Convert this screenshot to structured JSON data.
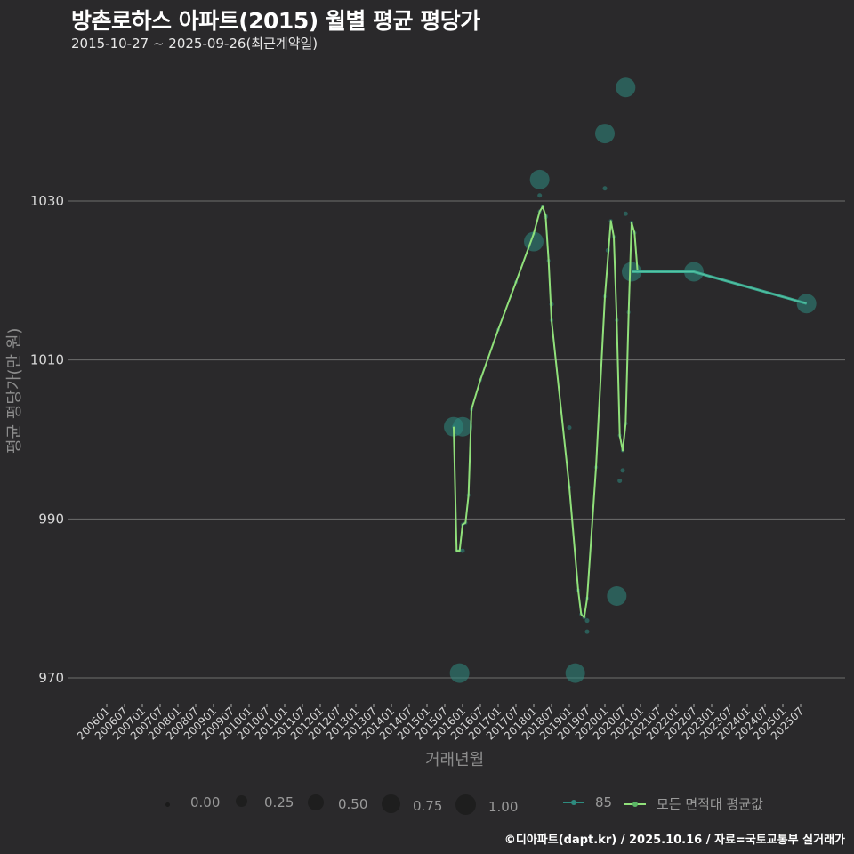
{
  "header": {
    "title": "방촌로하스 아파트(2015) 월별 평균 평당가",
    "subtitle": "2015-10-27 ~ 2025-09-26(최근계약일)"
  },
  "axes": {
    "ylabel": "평균 평당가(만 원)",
    "xlabel": "거래년월"
  },
  "footer": "©디아파트(dapt.kr) / 2025.10.16 / 자료=국토교통부 실거래가",
  "legend": {
    "size_labels": [
      "0.00",
      "0.25",
      "0.50",
      "0.75",
      "1.00"
    ],
    "series_labels": [
      "85",
      "모든 면적대 평균값"
    ]
  },
  "colors": {
    "background": "#2a292b",
    "grid": "#6e6e6e",
    "series_85": "#2e8b7f",
    "series_avg": "#90e07a"
  },
  "chart_data": {
    "type": "line",
    "title": "방촌로하스 아파트(2015) 월별 평균 평당가",
    "subtitle": "2015-10-27 ~ 2025-09-26(최근계약일)",
    "xlabel": "거래년월",
    "ylabel": "평균 평당가(만 원)",
    "ylim": [
      966,
      1048
    ],
    "yticks": [
      970,
      990,
      1010,
      1030
    ],
    "xticks": [
      "200601",
      "200607",
      "200701",
      "200707",
      "200801",
      "200807",
      "200901",
      "200907",
      "201001",
      "201007",
      "201101",
      "201107",
      "201201",
      "201207",
      "201301",
      "201307",
      "201401",
      "201407",
      "201501",
      "201507",
      "201601",
      "201607",
      "201701",
      "201707",
      "201801",
      "201807",
      "201901",
      "201907",
      "202001",
      "202007",
      "202101",
      "202107",
      "202201",
      "202207",
      "202301",
      "202307",
      "202401",
      "202407",
      "202501",
      "202507"
    ],
    "grid": "horizontal",
    "legend_position": "bottom",
    "series": [
      {
        "name": "85",
        "type": "scatter+line",
        "points": [
          {
            "x": "201510",
            "y": 1001.6,
            "size": 0.6
          },
          {
            "x": "201512",
            "y": 970.6,
            "size": 0.6
          },
          {
            "x": "201601",
            "y": 1001.6,
            "size": 0.6
          },
          {
            "x": "201801",
            "y": 1024.9,
            "size": 0.6
          },
          {
            "x": "201803",
            "y": 1032.7,
            "size": 0.6
          },
          {
            "x": "201903",
            "y": 970.6,
            "size": 0.6
          },
          {
            "x": "202001",
            "y": 1038.5,
            "size": 0.6
          },
          {
            "x": "202005",
            "y": 980.3,
            "size": 0.6
          },
          {
            "x": "202008",
            "y": 1044.3,
            "size": 0.6
          },
          {
            "x": "202010",
            "y": 1021.1,
            "size": 0.6
          },
          {
            "x": "202207",
            "y": 1021.1,
            "size": 0.6
          },
          {
            "x": "202509",
            "y": 1017.1,
            "size": 0.6
          }
        ],
        "line": [
          {
            "x": "202010",
            "y": 1021.1
          },
          {
            "x": "202207",
            "y": 1021.1
          },
          {
            "x": "202509",
            "y": 1017.1
          }
        ]
      },
      {
        "name": "모든 면적대 평균값",
        "type": "line",
        "points": [
          {
            "x": "201510",
            "y": 1001.6
          },
          {
            "x": "201511",
            "y": 986.0
          },
          {
            "x": "201512",
            "y": 986.0
          },
          {
            "x": "201601",
            "y": 989.3
          },
          {
            "x": "201602",
            "y": 989.5
          },
          {
            "x": "201603",
            "y": 993.0
          },
          {
            "x": "201604",
            "y": 1003.8
          },
          {
            "x": "201607",
            "y": 1007.5
          },
          {
            "x": "201701",
            "y": 1013.8
          },
          {
            "x": "201707",
            "y": 1019.8
          },
          {
            "x": "201801",
            "y": 1025.9
          },
          {
            "x": "201803",
            "y": 1028.7
          },
          {
            "x": "201804",
            "y": 1029.3
          },
          {
            "x": "201805",
            "y": 1028.2
          },
          {
            "x": "201806",
            "y": 1022.5
          },
          {
            "x": "201807",
            "y": 1015.0
          },
          {
            "x": "201901",
            "y": 994.0
          },
          {
            "x": "201904",
            "y": 981.0
          },
          {
            "x": "201905",
            "y": 978.0
          },
          {
            "x": "201906",
            "y": 977.6
          },
          {
            "x": "201907",
            "y": 980.0
          },
          {
            "x": "201910",
            "y": 996.5
          },
          {
            "x": "202001",
            "y": 1018.0
          },
          {
            "x": "202003",
            "y": 1027.5
          },
          {
            "x": "202004",
            "y": 1025.5
          },
          {
            "x": "202005",
            "y": 1015.0
          },
          {
            "x": "202006",
            "y": 1000.5
          },
          {
            "x": "202007",
            "y": 998.6
          },
          {
            "x": "202008",
            "y": 1002.0
          },
          {
            "x": "202009",
            "y": 1016.0
          },
          {
            "x": "202010",
            "y": 1027.3
          },
          {
            "x": "202011",
            "y": 1026.0
          },
          {
            "x": "202012",
            "y": 1021.1
          }
        ]
      }
    ],
    "small_points_85": [
      {
        "x": "201601",
        "y": 986.0
      },
      {
        "x": "201803",
        "y": 1030.7
      },
      {
        "x": "201805",
        "y": 1028.0
      },
      {
        "x": "201807",
        "y": 1017.0
      },
      {
        "x": "201901",
        "y": 1001.5
      },
      {
        "x": "201907",
        "y": 977.2
      },
      {
        "x": "201907",
        "y": 975.8
      },
      {
        "x": "202001",
        "y": 1031.6
      },
      {
        "x": "202002",
        "y": 1023.8
      },
      {
        "x": "202006",
        "y": 994.8
      },
      {
        "x": "202007",
        "y": 996.1
      },
      {
        "x": "202008",
        "y": 1028.4
      }
    ]
  }
}
